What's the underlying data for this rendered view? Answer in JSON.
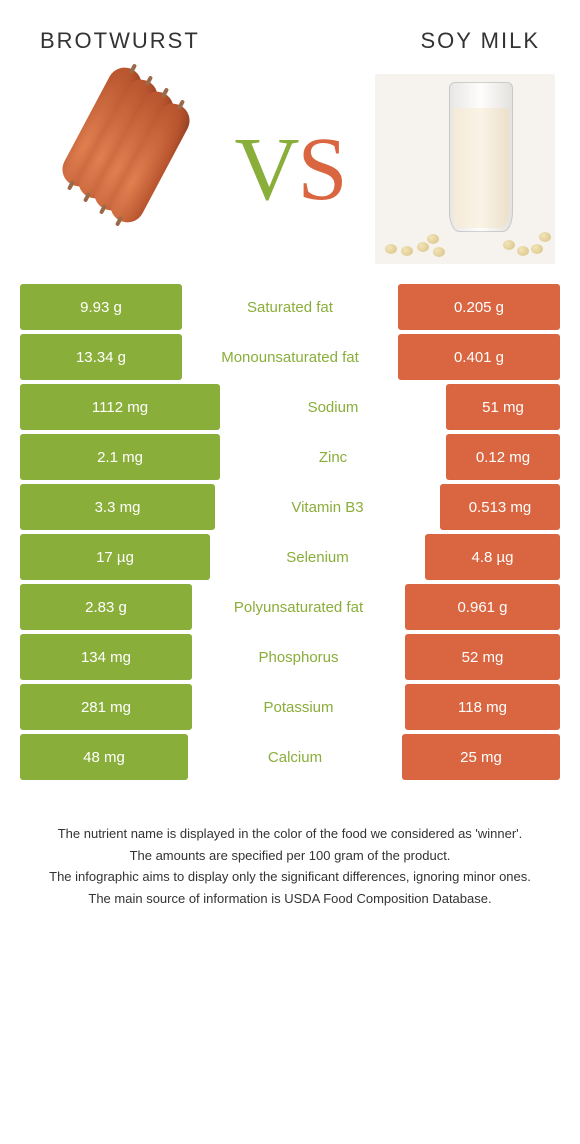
{
  "foods": {
    "left": {
      "name": "BROTWURST"
    },
    "right": {
      "name": "SOY MILK"
    }
  },
  "vs": {
    "v": "V",
    "s": "S"
  },
  "colors": {
    "green": "#8aae3a",
    "orange": "#d96640",
    "background": "#ffffff",
    "text": "#333333"
  },
  "rows": [
    {
      "label": "Saturated fat",
      "left": "9.93 g",
      "right": "0.205 g",
      "winner": "green",
      "leftW": 162,
      "rightW": 162
    },
    {
      "label": "Monounsaturated fat",
      "left": "13.34 g",
      "right": "0.401 g",
      "winner": "green",
      "leftW": 162,
      "rightW": 162
    },
    {
      "label": "Sodium",
      "left": "1112 mg",
      "right": "51 mg",
      "winner": "green",
      "leftW": 200,
      "rightW": 114
    },
    {
      "label": "Zinc",
      "left": "2.1 mg",
      "right": "0.12 mg",
      "winner": "green",
      "leftW": 200,
      "rightW": 114
    },
    {
      "label": "Vitamin B3",
      "left": "3.3 mg",
      "right": "0.513 mg",
      "winner": "green",
      "leftW": 195,
      "rightW": 120
    },
    {
      "label": "Selenium",
      "left": "17 µg",
      "right": "4.8 µg",
      "winner": "green",
      "leftW": 190,
      "rightW": 135
    },
    {
      "label": "Polyunsaturated fat",
      "left": "2.83 g",
      "right": "0.961 g",
      "winner": "green",
      "leftW": 172,
      "rightW": 155
    },
    {
      "label": "Phosphorus",
      "left": "134 mg",
      "right": "52 mg",
      "winner": "green",
      "leftW": 172,
      "rightW": 155
    },
    {
      "label": "Potassium",
      "left": "281 mg",
      "right": "118 mg",
      "winner": "green",
      "leftW": 172,
      "rightW": 155
    },
    {
      "label": "Calcium",
      "left": "48 mg",
      "right": "25 mg",
      "winner": "green",
      "leftW": 168,
      "rightW": 158
    }
  ],
  "footer": {
    "l1": "The nutrient name is displayed in the color of the food we considered as 'winner'.",
    "l2": "The amounts are specified per 100 gram of the product.",
    "l3": "The infographic aims to display only the significant differences, ignoring minor ones.",
    "l4": "The main source of information is USDA Food Composition Database."
  }
}
